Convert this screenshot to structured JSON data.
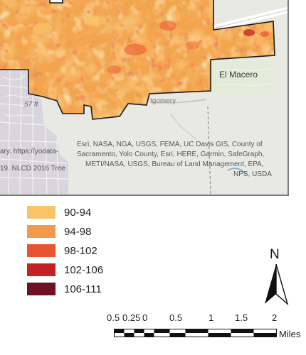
{
  "map": {
    "place_labels": {
      "el_macero": "El Macero",
      "elevation": "57 ft",
      "road": "tgomery"
    },
    "colors": {
      "background": "#e9e9e4",
      "urban": "#d8d4dc",
      "boundary": "#1a1a1a",
      "road": "#bdbdbd"
    },
    "credits": {
      "left_line1": "ary. https://yodata-",
      "left_line2": "19. NLCD 2016 Tree",
      "right_line1": "Esri, NASA, NGA, USGS, FEMA, UC Davis GIS, County of",
      "right_line2": "Sacramento, Yolo County, Esri, HERE, Garmin, SafeGraph,",
      "right_line3": "METI/NASA, USGS, Bureau of Land Management, EPA,",
      "right_line4": "NPS, USDA"
    }
  },
  "legend": {
    "items": [
      {
        "label": "90-94",
        "color": "#f7c46a"
      },
      {
        "label": "94-98",
        "color": "#f29a4c"
      },
      {
        "label": "98-102",
        "color": "#e8542f"
      },
      {
        "label": "102-106",
        "color": "#c42125"
      },
      {
        "label": "106-111",
        "color": "#6e1125"
      }
    ]
  },
  "north_arrow": {
    "label": "N"
  },
  "scale_bar": {
    "ticks": [
      "0.5",
      "0.25",
      "0",
      "0.5",
      "1",
      "1.5",
      "2"
    ],
    "units": "Miles"
  }
}
